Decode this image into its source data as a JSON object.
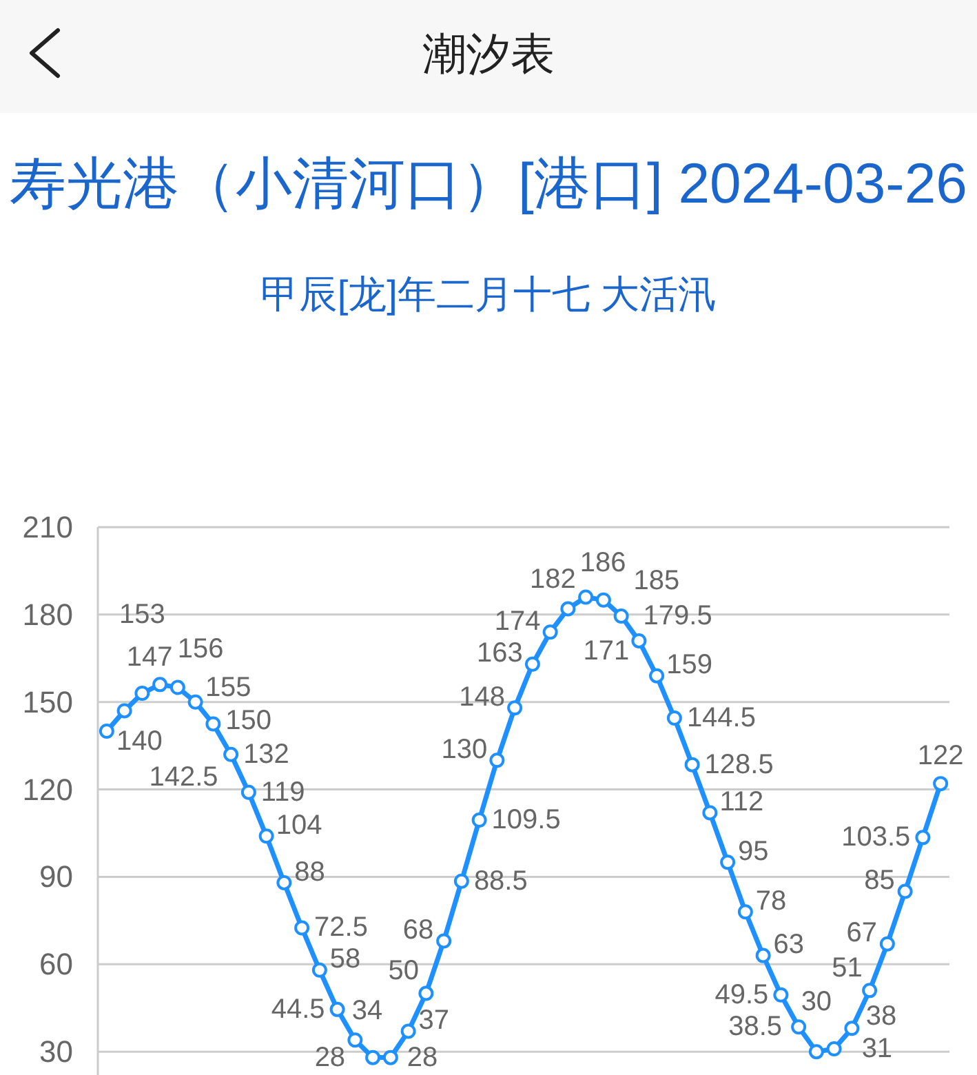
{
  "chart_data": {
    "type": "line",
    "title": "寿光港（小清河口）[港口] 2024-03-26",
    "subtitle": "甲辰[龙]年二月十七 大活汛",
    "annotations": [
      "潮汐表"
    ],
    "categories": [
      null,
      null,
      null,
      null,
      null,
      null,
      null,
      null,
      null,
      null,
      null,
      null,
      null,
      null,
      null,
      null,
      null,
      null,
      null,
      null,
      null,
      null,
      null,
      null,
      null,
      null,
      null,
      null,
      null,
      null,
      null,
      null,
      null,
      null,
      null,
      null,
      null,
      null,
      null,
      null,
      null,
      null,
      null,
      null,
      null,
      null,
      null,
      null
    ],
    "series": [
      {
        "color": "#1e90ff",
        "values": [
          140,
          147,
          153,
          156,
          155,
          150,
          142.5,
          132,
          119,
          104,
          88,
          72.5,
          58,
          44.5,
          34,
          28,
          28,
          37,
          50,
          68,
          88.5,
          109.5,
          130,
          148,
          163,
          174,
          182,
          186,
          185,
          179.5,
          171,
          159,
          144.5,
          128.5,
          112,
          95,
          78,
          63,
          49.5,
          38.5,
          30,
          31,
          38,
          51,
          67,
          85,
          103.5,
          122
        ]
      }
    ],
    "ylim": [
      22,
      210
    ],
    "yticks": [
      30,
      60,
      90,
      120,
      150,
      180,
      210
    ],
    "grid": "y",
    "marker": "circle",
    "line_style": "solid",
    "data_labels": true,
    "tick_labels": "y"
  }
}
